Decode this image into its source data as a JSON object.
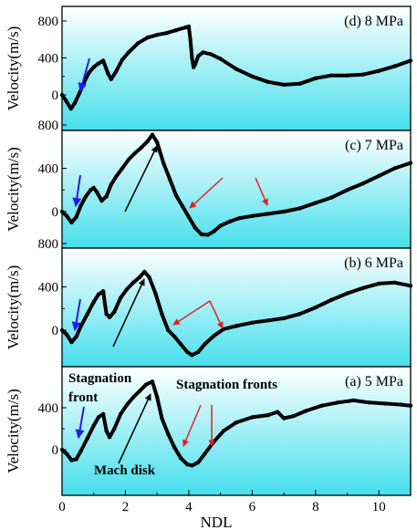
{
  "figure": {
    "x_axis_label": "NDL",
    "x_ticks": [
      0,
      2,
      4,
      6,
      8,
      10
    ],
    "y_tick_values": [
      0,
      400,
      800
    ],
    "colors": {
      "bg_top": "#ffffff",
      "bg_bottom": "#45dfec",
      "line": "#000000",
      "arrow_blue": "#1f1fe6",
      "arrow_red": "#e32020",
      "arrow_black": "#000000"
    }
  },
  "chart_data": [
    {
      "type": "line",
      "panel_label": "(d) 8 MPa",
      "ylabel": "Velocity(m/s)",
      "xlim": [
        0,
        11
      ],
      "ylim": [
        -250,
        850
      ],
      "y_ticks": [
        0,
        400,
        800
      ],
      "y_tick_labels": [
        "0",
        "400",
        "800"
      ],
      "x": [
        0,
        0.12,
        0.28,
        0.4,
        0.55,
        0.7,
        0.85,
        1.0,
        1.15,
        1.3,
        1.45,
        1.55,
        1.7,
        1.9,
        2.1,
        2.4,
        2.7,
        3.0,
        3.3,
        3.6,
        3.9,
        4.0,
        4.05,
        4.1,
        4.15,
        4.2,
        4.3,
        4.45,
        4.7,
        5.0,
        5.5,
        6.0,
        6.5,
        7.0,
        7.5,
        8.0,
        8.5,
        9.0,
        9.5,
        10.0,
        10.5,
        11.0
      ],
      "y": [
        0,
        -60,
        -150,
        -90,
        20,
        140,
        240,
        300,
        340,
        370,
        230,
        170,
        250,
        380,
        460,
        560,
        620,
        650,
        670,
        700,
        730,
        740,
        600,
        400,
        300,
        330,
        420,
        460,
        440,
        390,
        280,
        200,
        140,
        110,
        120,
        180,
        210,
        210,
        220,
        260,
        310,
        370
      ]
    },
    {
      "type": "line",
      "panel_label": "(c) 7 MPa",
      "ylabel": "Velocity(m/s)",
      "xlim": [
        0,
        11
      ],
      "ylim": [
        -250,
        850
      ],
      "y_ticks": [
        0,
        400,
        800
      ],
      "y_tick_labels": [
        "0",
        "400",
        "800"
      ],
      "x": [
        0,
        0.15,
        0.3,
        0.45,
        0.6,
        0.75,
        0.9,
        1.0,
        1.1,
        1.25,
        1.4,
        1.55,
        1.7,
        1.9,
        2.1,
        2.3,
        2.5,
        2.7,
        2.85,
        3.0,
        3.2,
        3.4,
        3.6,
        3.8,
        4.0,
        4.2,
        4.4,
        4.6,
        4.8,
        5.0,
        5.3,
        5.6,
        6.0,
        6.5,
        7.0,
        7.5,
        8.0,
        8.5,
        9.0,
        9.5,
        10.0,
        10.5,
        11.0
      ],
      "y": [
        0,
        -40,
        -100,
        -50,
        60,
        140,
        200,
        220,
        180,
        100,
        140,
        250,
        320,
        400,
        480,
        540,
        590,
        650,
        710,
        640,
        450,
        300,
        150,
        50,
        -50,
        -150,
        -210,
        -215,
        -180,
        -130,
        -90,
        -60,
        -40,
        -20,
        0,
        30,
        80,
        130,
        200,
        260,
        330,
        400,
        450
      ]
    },
    {
      "type": "line",
      "panel_label": "(b) 6 MPa",
      "ylabel": "Velocity(m/s)",
      "xlim": [
        0,
        11
      ],
      "ylim": [
        -250,
        850
      ],
      "y_ticks": [
        0,
        400,
        800
      ],
      "y_tick_labels": [
        "0",
        "400",
        "800"
      ],
      "x": [
        0,
        0.15,
        0.3,
        0.45,
        0.6,
        0.8,
        1.0,
        1.15,
        1.3,
        1.4,
        1.5,
        1.65,
        1.85,
        2.05,
        2.25,
        2.45,
        2.6,
        2.75,
        2.95,
        3.15,
        3.35,
        3.55,
        3.75,
        3.95,
        4.1,
        4.3,
        4.5,
        4.8,
        5.1,
        5.5,
        6.0,
        6.5,
        7.0,
        7.5,
        8.0,
        8.5,
        9.0,
        9.5,
        10.0,
        10.5,
        11.0
      ],
      "y": [
        0,
        -40,
        -110,
        -60,
        40,
        150,
        260,
        330,
        360,
        150,
        120,
        170,
        300,
        380,
        440,
        490,
        540,
        490,
        340,
        150,
        0,
        -60,
        -130,
        -200,
        -230,
        -200,
        -130,
        -50,
        10,
        40,
        70,
        90,
        110,
        150,
        210,
        280,
        340,
        390,
        430,
        440,
        410
      ]
    },
    {
      "type": "line",
      "panel_label": "(a) 5 MPa",
      "ylabel": "Velocity(m/s)",
      "xlim": [
        0,
        11
      ],
      "ylim": [
        -250,
        850
      ],
      "y_ticks": [
        0,
        400
      ],
      "y_tick_labels": [
        "0",
        "400"
      ],
      "x": [
        0,
        0.15,
        0.3,
        0.45,
        0.6,
        0.8,
        1.0,
        1.15,
        1.3,
        1.4,
        1.5,
        1.65,
        1.85,
        2.05,
        2.25,
        2.45,
        2.65,
        2.85,
        3.0,
        3.15,
        3.35,
        3.55,
        3.75,
        3.95,
        4.1,
        4.3,
        4.5,
        4.8,
        5.1,
        5.5,
        6.0,
        6.5,
        6.8,
        7.0,
        7.3,
        7.7,
        8.2,
        8.7,
        9.2,
        9.7,
        10.2,
        10.7,
        11.0
      ],
      "y": [
        0,
        -40,
        -100,
        -90,
        -10,
        110,
        230,
        310,
        340,
        180,
        120,
        200,
        340,
        430,
        500,
        560,
        620,
        650,
        500,
        300,
        150,
        20,
        -80,
        -140,
        -150,
        -120,
        -40,
        80,
        180,
        260,
        310,
        330,
        360,
        300,
        320,
        370,
        420,
        450,
        470,
        450,
        440,
        430,
        420
      ]
    }
  ],
  "annotations": {
    "stagnation_front": "Stagnation\nfront",
    "stagnation_front_line1": "Stagnation",
    "stagnation_front_line2": "front",
    "stagnation_fronts": "Stagnation fronts",
    "mach_disk": "Mach disk"
  }
}
